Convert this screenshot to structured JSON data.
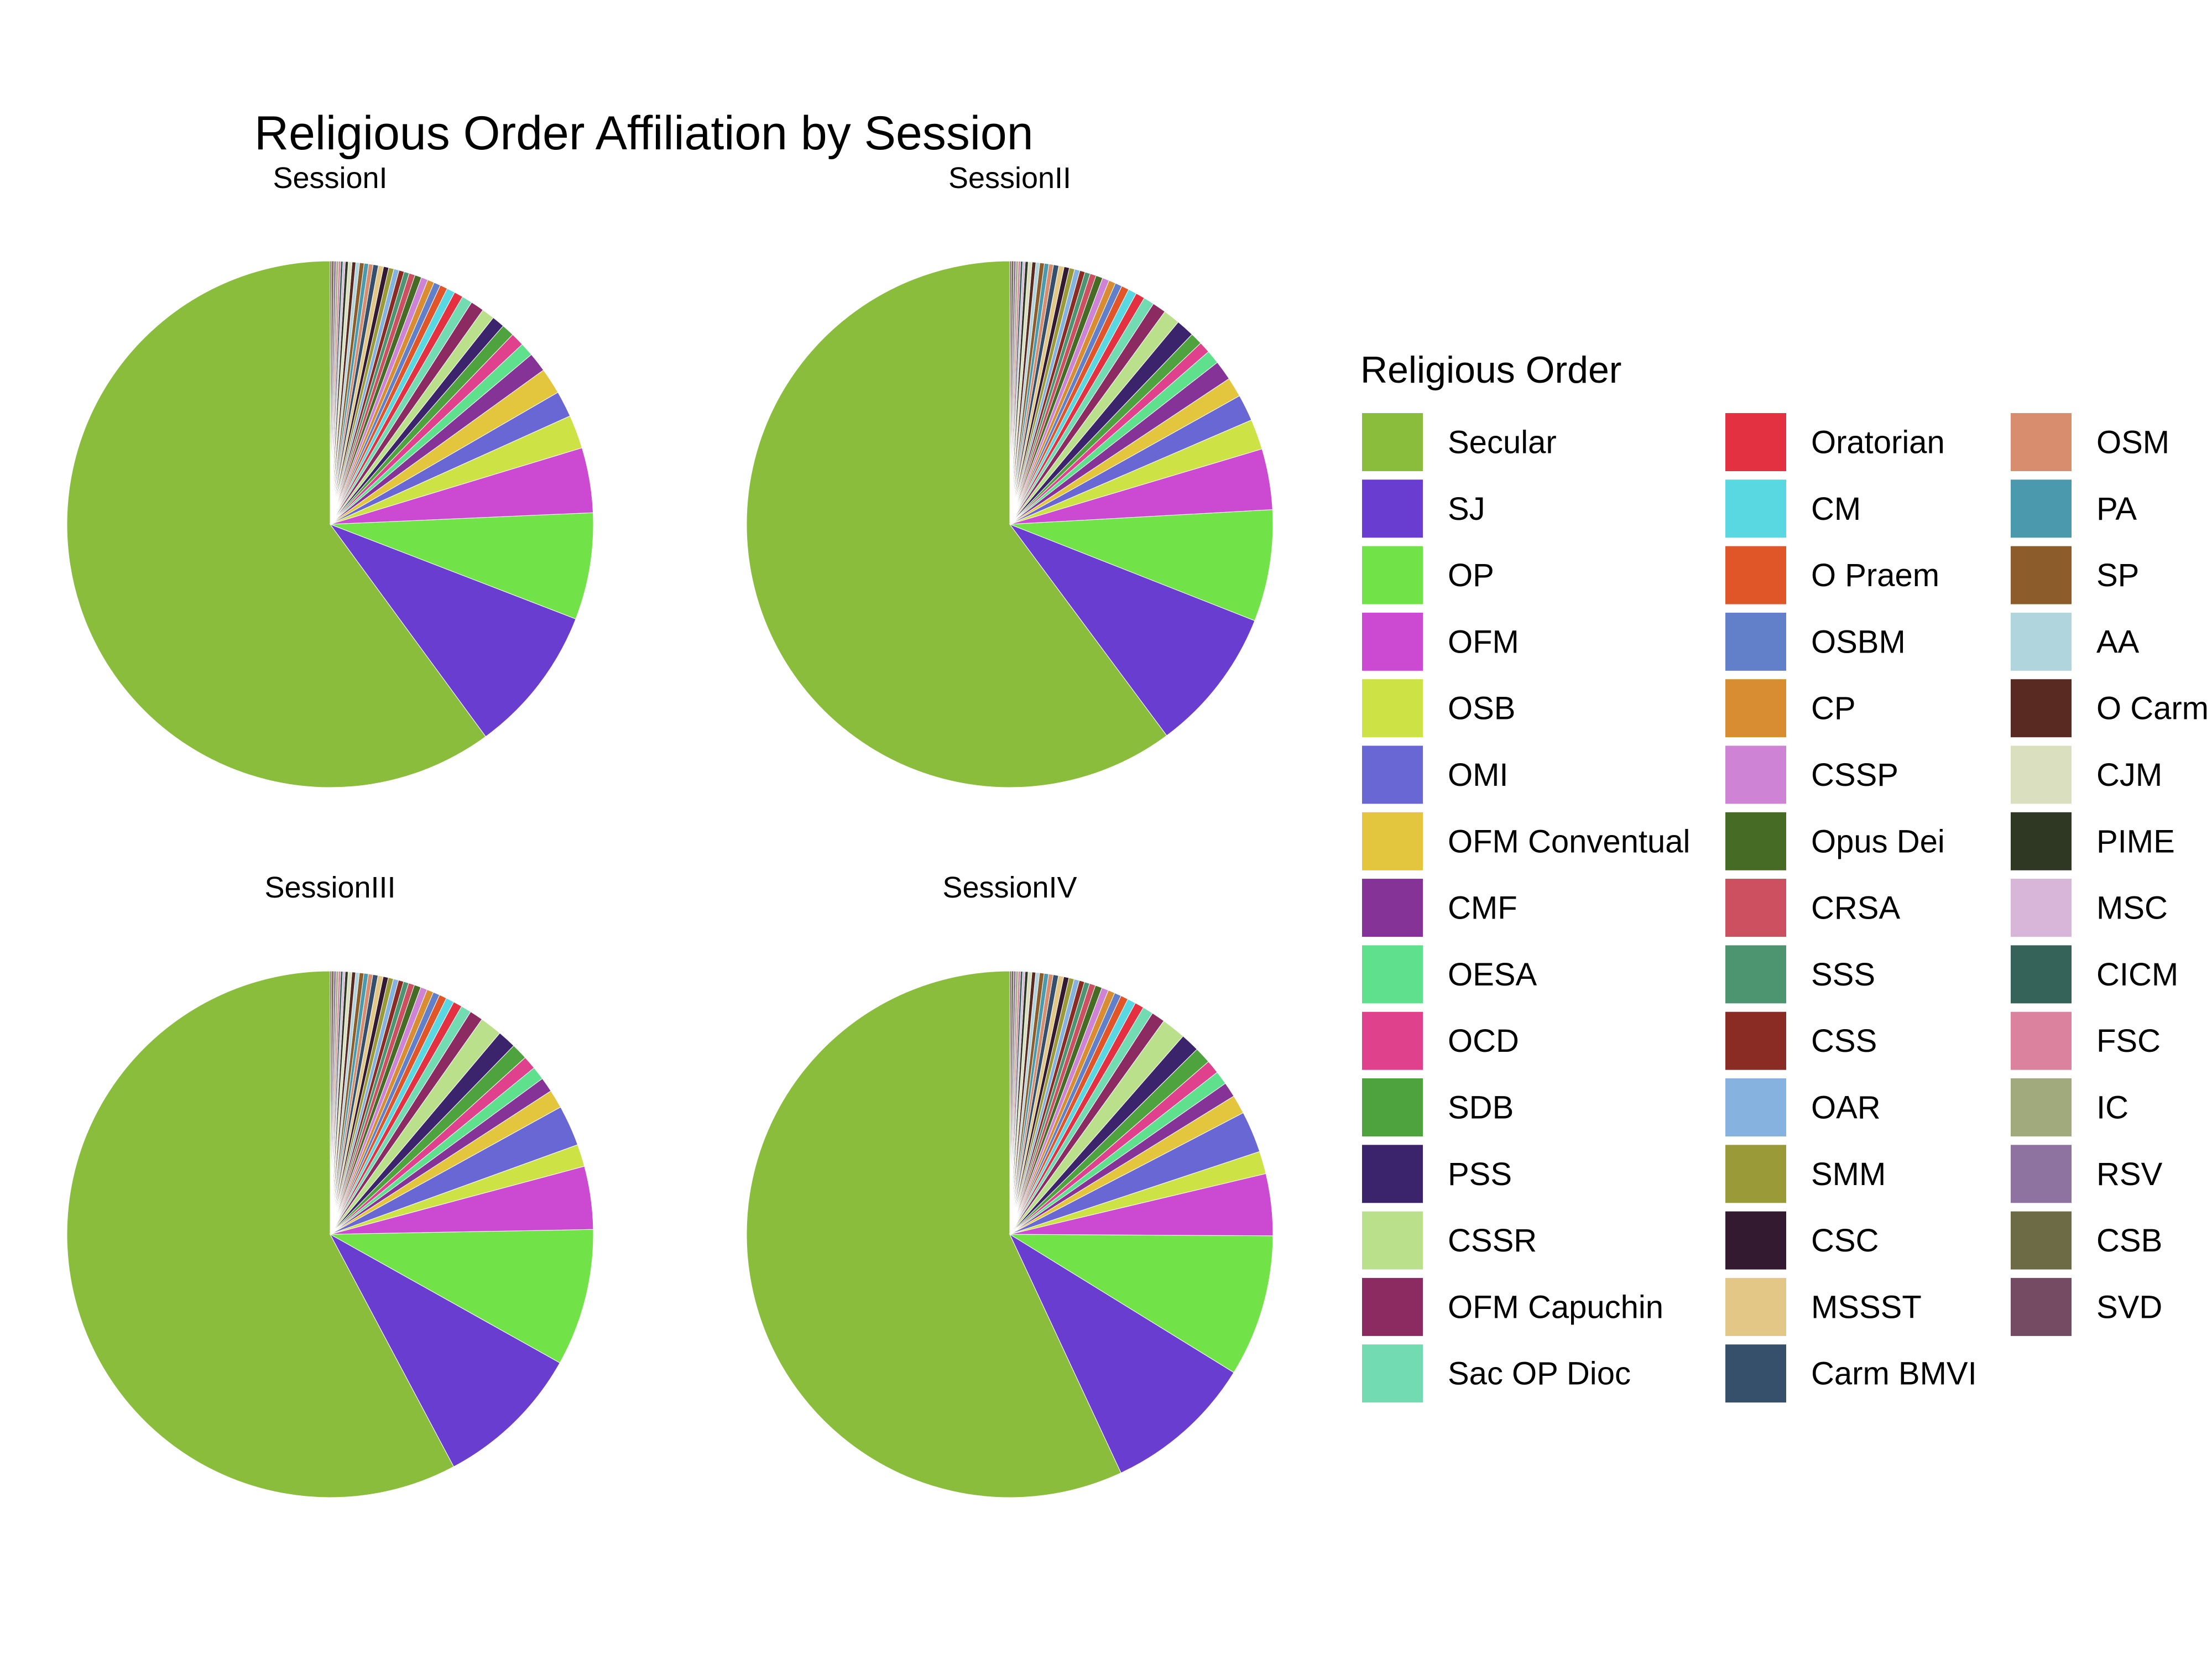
{
  "chart_data": {
    "type": "pie",
    "title": "Religious Order Affiliation by Session",
    "legend": {
      "title": "Religious Order",
      "position": "right",
      "entries": [
        {
          "name": "Secular",
          "color": "#89bd3b"
        },
        {
          "name": "SJ",
          "color": "#683dcf"
        },
        {
          "name": "OP",
          "color": "#71e349"
        },
        {
          "name": "OFM",
          "color": "#cc4ad1"
        },
        {
          "name": "OSB",
          "color": "#cde345"
        },
        {
          "name": "OMI",
          "color": "#6967d3"
        },
        {
          "name": "OFM Conventual",
          "color": "#e3c63e"
        },
        {
          "name": "CMF",
          "color": "#853396"
        },
        {
          "name": "OESA",
          "color": "#5fe08d"
        },
        {
          "name": "OCD",
          "color": "#e0418c"
        },
        {
          "name": "SDB",
          "color": "#4ea33f"
        },
        {
          "name": "PSS",
          "color": "#3b246b"
        },
        {
          "name": "CSSR",
          "color": "#bbe08b"
        },
        {
          "name": "OFM Capuchin",
          "color": "#8c2b62"
        },
        {
          "name": "Sac OP Dioc",
          "color": "#72dbb2"
        },
        {
          "name": "Oratorian",
          "color": "#e33142"
        },
        {
          "name": "CM",
          "color": "#5ad8e2"
        },
        {
          "name": "O Praem",
          "color": "#e05628"
        },
        {
          "name": "OSBM",
          "color": "#6180c9"
        },
        {
          "name": "CP",
          "color": "#d98d32"
        },
        {
          "name": "CSSP",
          "color": "#cf83d4"
        },
        {
          "name": "Opus Dei",
          "color": "#466b24"
        },
        {
          "name": "CRSA",
          "color": "#cc5060"
        },
        {
          "name": "SSS",
          "color": "#4d9470"
        },
        {
          "name": "CSS",
          "color": "#8a2b24"
        },
        {
          "name": "OAR",
          "color": "#86b2e0"
        },
        {
          "name": "SMM",
          "color": "#9b9a39"
        },
        {
          "name": "CSC",
          "color": "#341a30"
        },
        {
          "name": "MSSST",
          "color": "#e3c786"
        },
        {
          "name": "Carm BMVI",
          "color": "#36506b"
        },
        {
          "name": "OSM",
          "color": "#d98d6f"
        },
        {
          "name": "PA",
          "color": "#4a99ad"
        },
        {
          "name": "SP",
          "color": "#8c5c2a"
        },
        {
          "name": "AA",
          "color": "#b1d5dc"
        },
        {
          "name": "O Carm",
          "color": "#592a22"
        },
        {
          "name": "CJM",
          "color": "#dae0bf"
        },
        {
          "name": "PIME",
          "color": "#2f3822"
        },
        {
          "name": "MSC",
          "color": "#d8b6d9"
        },
        {
          "name": "CICM",
          "color": "#35635a"
        },
        {
          "name": "FSC",
          "color": "#db829f"
        },
        {
          "name": "IC",
          "color": "#a0aa7d"
        },
        {
          "name": "RSV",
          "color": "#8e729f"
        },
        {
          "name": "CSB",
          "color": "#6c6b45"
        },
        {
          "name": "SVD",
          "color": "#744b63"
        }
      ]
    },
    "panels": [
      {
        "name": "SessionI",
        "values": [
          1310,
          198,
          143,
          87,
          45,
          35,
          35,
          26,
          18,
          18,
          17,
          17,
          17,
          18,
          14,
          12,
          11,
          10,
          9,
          9,
          9,
          9,
          8,
          7,
          7,
          7,
          7,
          7,
          7,
          7,
          6,
          6,
          6,
          5,
          5,
          5,
          4,
          3,
          3,
          3,
          3,
          3,
          3,
          2
        ]
      },
      {
        "name": "SessionII",
        "values": [
          1290,
          190,
          147,
          80,
          40,
          35,
          26,
          26,
          18,
          15,
          16,
          24,
          22,
          18,
          14,
          12,
          11,
          10,
          9,
          9,
          9,
          9,
          8,
          7,
          7,
          7,
          7,
          7,
          7,
          7,
          6,
          6,
          6,
          5,
          5,
          5,
          4,
          3,
          3,
          3,
          3,
          3,
          3,
          2
        ]
      },
      {
        "name": "SessionIII",
        "values": [
          1270,
          200,
          185,
          85,
          30,
          55,
          25,
          20,
          18,
          18,
          22,
          25,
          30,
          18,
          14,
          12,
          11,
          10,
          9,
          9,
          9,
          9,
          8,
          7,
          7,
          7,
          7,
          7,
          7,
          7,
          6,
          6,
          6,
          5,
          5,
          5,
          4,
          3,
          3,
          3,
          3,
          3,
          3,
          2
        ]
      },
      {
        "name": "SessionIV",
        "values": [
          1230,
          200,
          188,
          82,
          30,
          55,
          25,
          20,
          18,
          18,
          22,
          25,
          32,
          18,
          14,
          12,
          11,
          10,
          9,
          9,
          9,
          9,
          8,
          7,
          7,
          7,
          7,
          7,
          7,
          7,
          6,
          6,
          6,
          5,
          5,
          5,
          4,
          3,
          3,
          3,
          3,
          3,
          3,
          2
        ]
      }
    ]
  }
}
